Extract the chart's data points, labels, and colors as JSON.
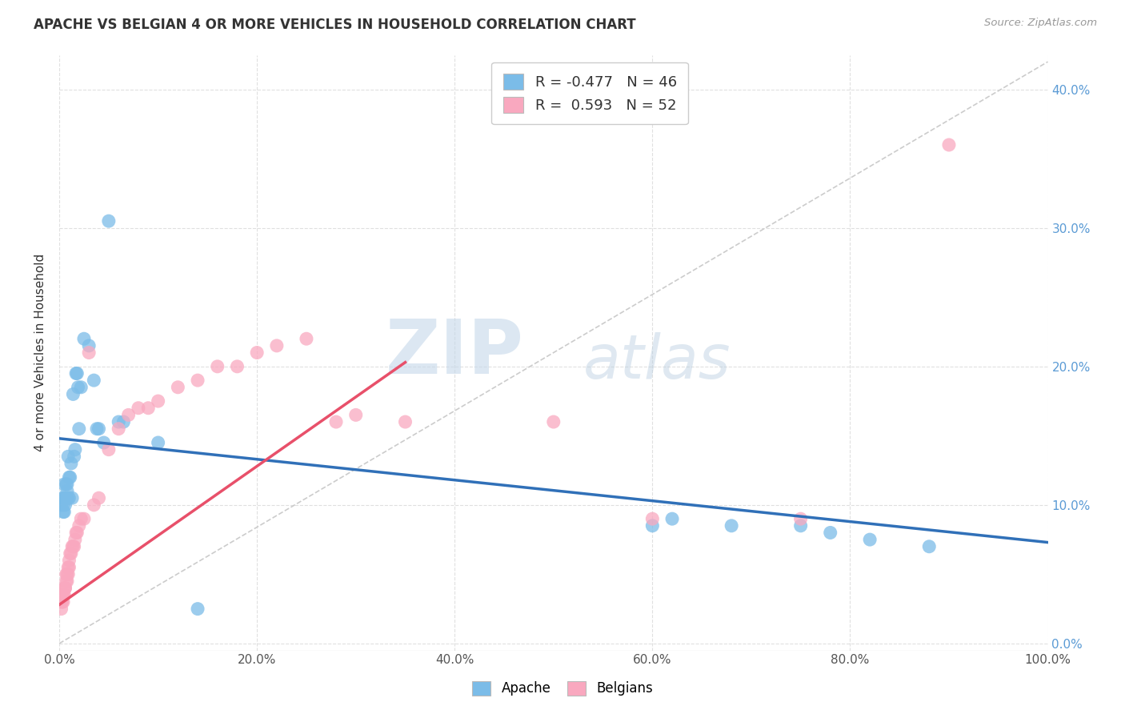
{
  "title": "APACHE VS BELGIAN 4 OR MORE VEHICLES IN HOUSEHOLD CORRELATION CHART",
  "source": "Source: ZipAtlas.com",
  "ylabel": "4 or more Vehicles in Household",
  "xlim": [
    0.0,
    1.0
  ],
  "ylim": [
    -0.005,
    0.425
  ],
  "xticks": [
    0.0,
    0.2,
    0.4,
    0.6,
    0.8,
    1.0
  ],
  "yticks": [
    0.0,
    0.1,
    0.2,
    0.3,
    0.4
  ],
  "xticklabels": [
    "0.0%",
    "20.0%",
    "40.0%",
    "60.0%",
    "80.0%",
    "100.0%"
  ],
  "yticklabels_right": [
    "0.0%",
    "10.0%",
    "20.0%",
    "30.0%",
    "40.0%"
  ],
  "apache_color": "#7bbce8",
  "belgian_color": "#f9a8bf",
  "apache_line_color": "#3070b8",
  "belgian_line_color": "#e8506a",
  "diag_line_color": "#cccccc",
  "legend_apache_R": "-0.477",
  "legend_apache_N": "46",
  "legend_belgian_R": "0.593",
  "legend_belgian_N": "52",
  "apache_slope": -0.075,
  "apache_intercept": 0.148,
  "belgian_slope": 0.5,
  "belgian_intercept": 0.028,
  "apache_x": [
    0.002,
    0.003,
    0.004,
    0.004,
    0.005,
    0.005,
    0.005,
    0.006,
    0.006,
    0.007,
    0.007,
    0.008,
    0.008,
    0.009,
    0.009,
    0.01,
    0.01,
    0.011,
    0.012,
    0.013,
    0.014,
    0.015,
    0.016,
    0.017,
    0.018,
    0.019,
    0.02,
    0.022,
    0.025,
    0.03,
    0.035,
    0.038,
    0.04,
    0.045,
    0.05,
    0.06,
    0.065,
    0.1,
    0.14,
    0.6,
    0.62,
    0.68,
    0.75,
    0.78,
    0.82,
    0.88
  ],
  "apache_y": [
    0.1,
    0.105,
    0.095,
    0.1,
    0.095,
    0.105,
    0.115,
    0.1,
    0.105,
    0.105,
    0.115,
    0.11,
    0.115,
    0.105,
    0.135,
    0.105,
    0.12,
    0.12,
    0.13,
    0.105,
    0.18,
    0.135,
    0.14,
    0.195,
    0.195,
    0.185,
    0.155,
    0.185,
    0.22,
    0.215,
    0.19,
    0.155,
    0.155,
    0.145,
    0.305,
    0.16,
    0.16,
    0.145,
    0.025,
    0.085,
    0.09,
    0.085,
    0.085,
    0.08,
    0.075,
    0.07
  ],
  "belgian_x": [
    0.002,
    0.002,
    0.003,
    0.003,
    0.004,
    0.004,
    0.005,
    0.005,
    0.006,
    0.006,
    0.007,
    0.007,
    0.008,
    0.008,
    0.009,
    0.009,
    0.01,
    0.01,
    0.011,
    0.012,
    0.013,
    0.014,
    0.015,
    0.016,
    0.017,
    0.018,
    0.02,
    0.022,
    0.025,
    0.03,
    0.035,
    0.04,
    0.05,
    0.06,
    0.07,
    0.08,
    0.09,
    0.1,
    0.12,
    0.14,
    0.16,
    0.18,
    0.2,
    0.22,
    0.25,
    0.28,
    0.3,
    0.35,
    0.5,
    0.6,
    0.75,
    0.9
  ],
  "belgian_y": [
    0.025,
    0.03,
    0.03,
    0.035,
    0.03,
    0.035,
    0.035,
    0.04,
    0.04,
    0.04,
    0.045,
    0.05,
    0.045,
    0.05,
    0.05,
    0.055,
    0.055,
    0.06,
    0.065,
    0.065,
    0.07,
    0.07,
    0.07,
    0.075,
    0.08,
    0.08,
    0.085,
    0.09,
    0.09,
    0.21,
    0.1,
    0.105,
    0.14,
    0.155,
    0.165,
    0.17,
    0.17,
    0.175,
    0.185,
    0.19,
    0.2,
    0.2,
    0.21,
    0.215,
    0.22,
    0.16,
    0.165,
    0.16,
    0.16,
    0.09,
    0.09,
    0.36
  ],
  "watermark_zip": "ZIP",
  "watermark_atlas": "atlas",
  "background_color": "#ffffff",
  "grid_color": "#e0e0e0"
}
